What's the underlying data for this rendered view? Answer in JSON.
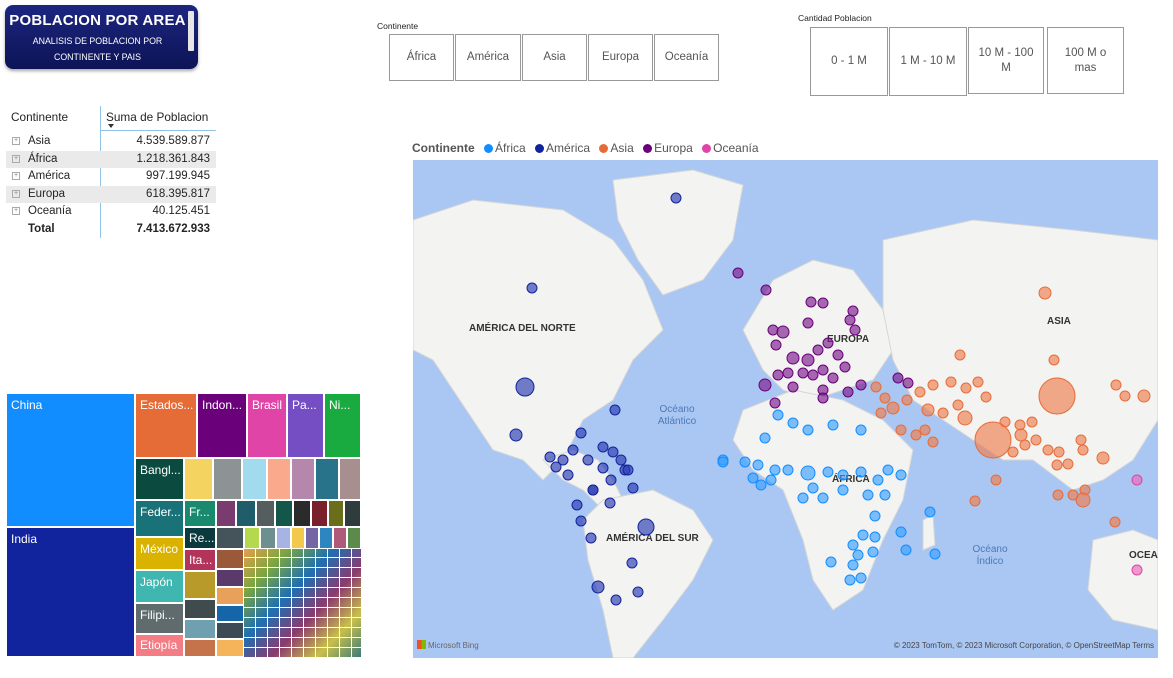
{
  "title_card": {
    "title": "POBLACION POR AREA",
    "subtitle_line1": "ANALISIS DE POBLACION POR",
    "subtitle_line2": "CONTINENTE Y PAIS"
  },
  "continent_slicer": {
    "label": "Continente",
    "options": [
      "África",
      "América",
      "Asia",
      "Europa",
      "Oceanía"
    ]
  },
  "population_slicer": {
    "label": "Cantidad Poblacion",
    "options": [
      "0 - 1 M",
      "1 M - 10 M",
      "10 M - 100 M",
      "100 M o mas"
    ]
  },
  "matrix": {
    "header_continent": "Continente",
    "header_sum": "Suma de Poblacion",
    "rows": [
      {
        "name": "Asia",
        "value": "4.539.589.877"
      },
      {
        "name": "África",
        "value": "1.218.361.843"
      },
      {
        "name": "América",
        "value": "997.199.945"
      },
      {
        "name": "Europa",
        "value": "618.395.817"
      },
      {
        "name": "Oceanía",
        "value": "40.125.451"
      }
    ],
    "total_label": "Total",
    "total_value": "7.413.672.933"
  },
  "treemap": {
    "labels": [
      "China",
      "India",
      "Estados...",
      "Indon...",
      "Brasil",
      "Pa...",
      "Ni...",
      "Bangl...",
      "Feder...",
      "México",
      "Japón",
      "Filipi...",
      "Etiopía",
      "Fr...",
      "Re...",
      "Ita..."
    ]
  },
  "map": {
    "legend_title": "Continente",
    "legend": [
      {
        "name": "África",
        "color": "#118dff"
      },
      {
        "name": "América",
        "color": "#12239e"
      },
      {
        "name": "Asia",
        "color": "#e66c37"
      },
      {
        "name": "Europa",
        "color": "#6b007b"
      },
      {
        "name": "Oceanía",
        "color": "#e044a7"
      }
    ],
    "labels": [
      "AMÉRICA DEL NORTE",
      "EUROPA",
      "ASIA",
      "ÁFRICA",
      "AMÉRICA DEL SUR",
      "OCEA"
    ],
    "ocean_atlantic": "Océano Atlántico",
    "ocean_indian": "Océano Índico",
    "bing": "Microsoft Bing",
    "copyright": "© 2023 TomTom, © 2023 Microsoft Corporation, © OpenStreetMap  Terms"
  }
}
